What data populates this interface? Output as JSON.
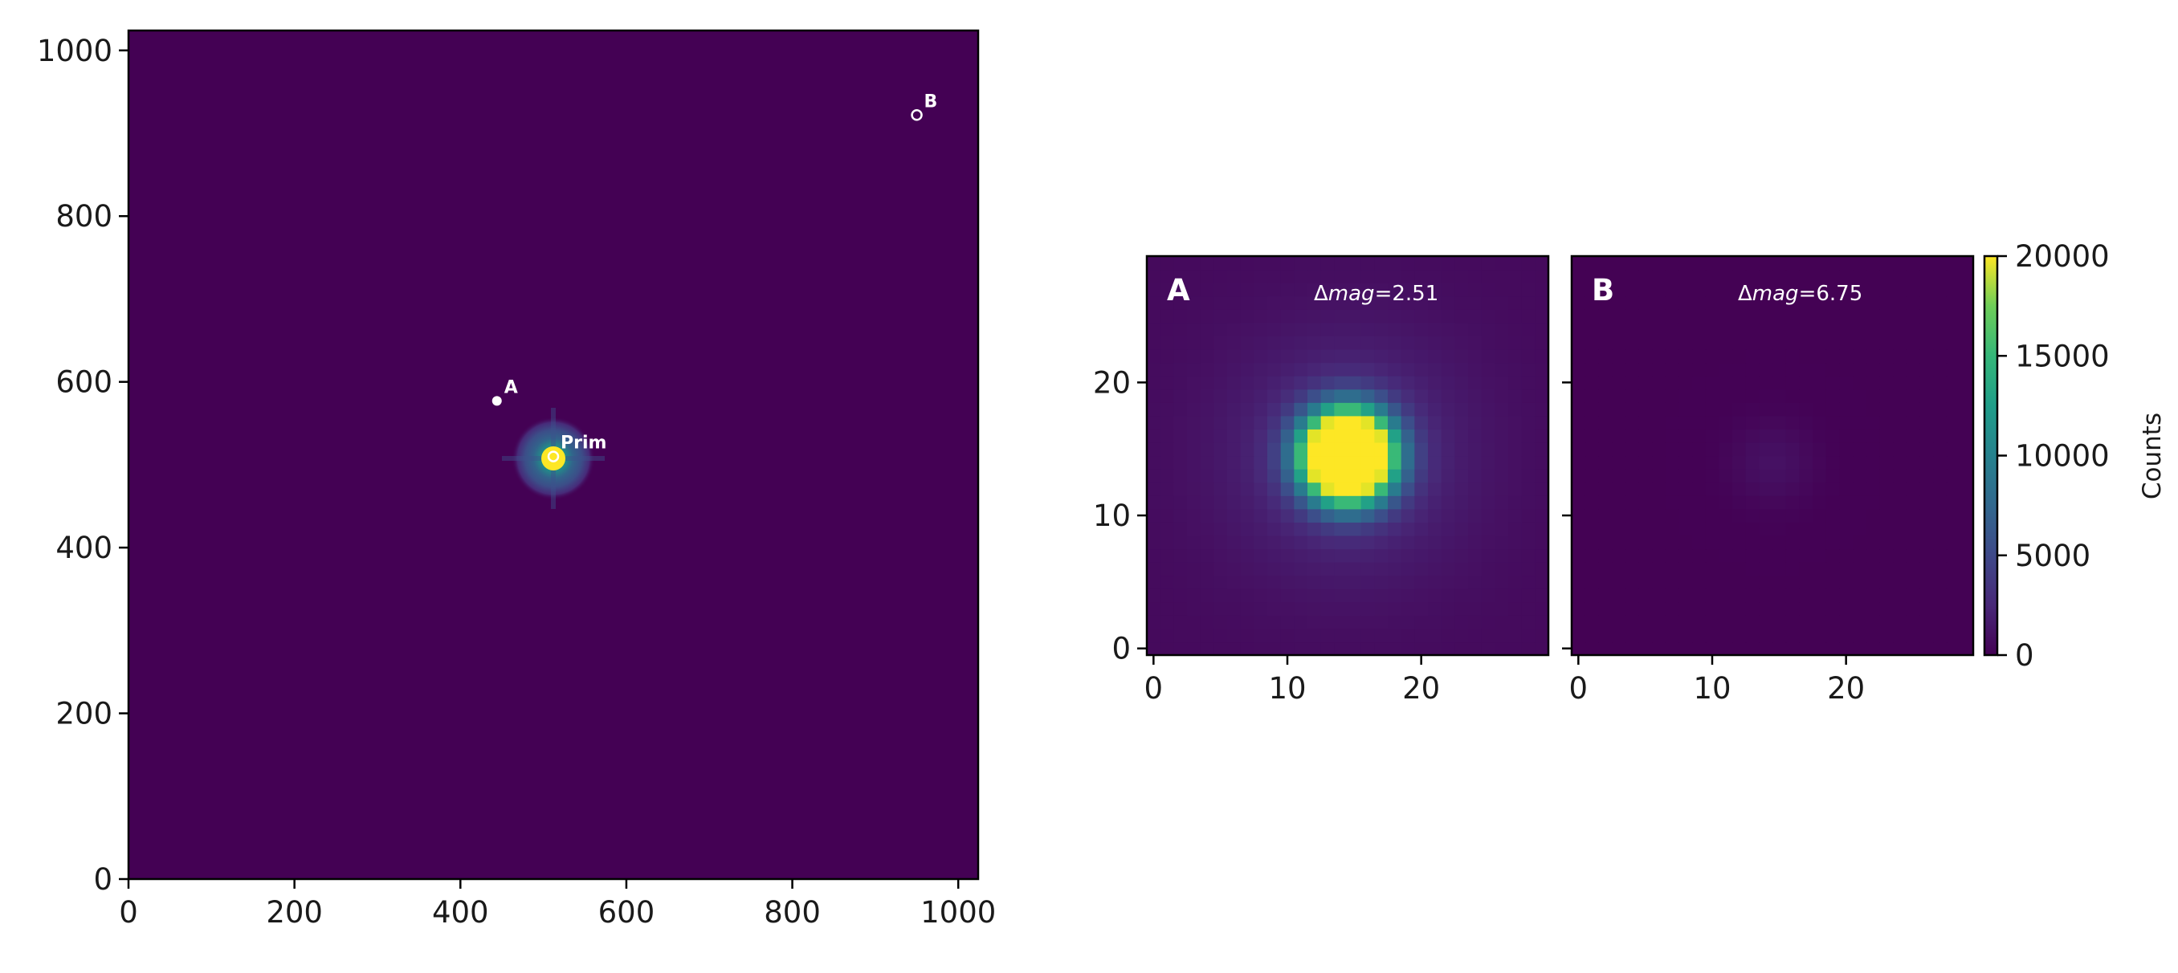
{
  "chart_data": [
    {
      "id": "full-frame",
      "type": "heatmap",
      "xlim": [
        0,
        1024
      ],
      "ylim": [
        0,
        1024
      ],
      "xticks": [
        0,
        200,
        400,
        600,
        800,
        1000
      ],
      "yticks": [
        0,
        200,
        400,
        600,
        800,
        1000
      ],
      "colormap": "viridis",
      "background_color": "#440154",
      "sources": [
        {
          "label": "Prim",
          "x": 512,
          "y": 510,
          "marker": "open-circle",
          "color": "#ffffff"
        },
        {
          "label": "A",
          "x": 444,
          "y": 577,
          "marker": "filled-circle",
          "color": "#ffffff"
        },
        {
          "label": "B",
          "x": 950,
          "y": 922,
          "marker": "open-circle",
          "color": "#ffffff"
        }
      ]
    },
    {
      "id": "cutout-a",
      "type": "heatmap",
      "panel_label": "A",
      "annotation_prefix": "Δ",
      "annotation_italic": "mag",
      "annotation_suffix": "=2.51",
      "xlim": [
        -0.5,
        29.5
      ],
      "ylim": [
        -0.5,
        29.5
      ],
      "xticks": [
        0,
        10,
        20
      ],
      "yticks": [
        0,
        10,
        20
      ],
      "source_center": [
        14.5,
        14.5
      ],
      "peak_counts": 40000,
      "halo_counts": 2300,
      "background_counts": 500
    },
    {
      "id": "cutout-b",
      "type": "heatmap",
      "panel_label": "B",
      "annotation_prefix": "Δ",
      "annotation_italic": "mag",
      "annotation_suffix": "=6.75",
      "xlim": [
        -0.5,
        29.5
      ],
      "ylim": [
        -0.5,
        29.5
      ],
      "xticks": [
        0,
        10,
        20
      ],
      "source_center": [
        14.5,
        14.0
      ],
      "peak_counts": 900,
      "background_counts": 30
    }
  ],
  "colorbar": {
    "label": "Counts",
    "range": [
      0,
      20000
    ],
    "ticks": [
      0,
      5000,
      10000,
      15000,
      20000
    ],
    "colormap": "viridis"
  }
}
